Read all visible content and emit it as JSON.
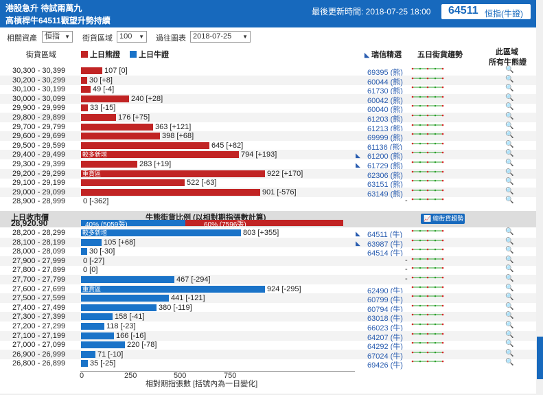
{
  "header": {
    "title_line1": "港股急升 待試兩萬九",
    "title_line2": "高槓桿牛64511觀望升勢持續",
    "last_update": "最後更新時間: 2018-07-25 18:00",
    "code": "64511",
    "code_name": "恒指(牛證)"
  },
  "filters": {
    "asset_label": "相關資產",
    "asset_value": "恒指",
    "zone_label": "街貨區域",
    "zone_value": "100",
    "chart_label": "過往圖表",
    "chart_value": "2018-07-25"
  },
  "columns": {
    "zone": "街貨區域",
    "bear_legend": "上日熊證",
    "bull_legend": "上日牛證",
    "recommend": "瑞信精選",
    "trend": "五日街貨趨勢",
    "this_zone_1": "此區域",
    "this_zone_2": "所有牛熊證"
  },
  "bear_rows": [
    {
      "range": "30,300 - 30,399",
      "value": 107,
      "change": "[0]",
      "label": "107 [0]",
      "code": "69395 (熊)",
      "chip": false,
      "inner": ""
    },
    {
      "range": "30,200 - 30,299",
      "value": 30,
      "change": "[+8]",
      "label": "30 [+8]",
      "code": "60044 (熊)",
      "chip": false,
      "inner": ""
    },
    {
      "range": "30,100 - 30,199",
      "value": 49,
      "change": "[-4]",
      "label": "49 [-4]",
      "code": "61730 (熊)",
      "chip": false,
      "inner": ""
    },
    {
      "range": "30,000 - 30,099",
      "value": 240,
      "change": "[+28]",
      "label": "240 [+28]",
      "code": "60042 (熊)",
      "chip": false,
      "inner": ""
    },
    {
      "range": "29,900 - 29,999",
      "value": 33,
      "change": "[-15]",
      "label": "33 [-15]",
      "code": "60040 (熊)",
      "chip": false,
      "inner": ""
    },
    {
      "range": "29,800 - 29,899",
      "value": 176,
      "change": "[+75]",
      "label": "176 [+75]",
      "code": "61203 (熊)",
      "chip": false,
      "inner": ""
    },
    {
      "range": "29,700 - 29,799",
      "value": 363,
      "change": "[+121]",
      "label": "363 [+121]",
      "code": "61213 (熊)",
      "chip": false,
      "inner": ""
    },
    {
      "range": "29,600 - 29,699",
      "value": 398,
      "change": "[+68]",
      "label": "398 [+68]",
      "code": "69999 (熊)",
      "chip": false,
      "inner": ""
    },
    {
      "range": "29,500 - 29,599",
      "value": 645,
      "change": "[+82]",
      "label": "645 [+82]",
      "code": "61136 (熊)",
      "chip": false,
      "inner": ""
    },
    {
      "range": "29,400 - 29,499",
      "value": 794,
      "change": "[+193]",
      "label": "794 [+193]",
      "code": "61200 (熊)",
      "chip": true,
      "inner": "較多新增"
    },
    {
      "range": "29,300 - 29,399",
      "value": 283,
      "change": "[+19]",
      "label": "283 [+19]",
      "code": "61729 (熊)",
      "chip": true,
      "inner": ""
    },
    {
      "range": "29,200 - 29,299",
      "value": 922,
      "change": "[+170]",
      "label": "922 [+170]",
      "code": "62306 (熊)",
      "chip": false,
      "inner": "重貨區"
    },
    {
      "range": "29,100 - 29,199",
      "value": 522,
      "change": "[-63]",
      "label": "522 [-63]",
      "code": "63151 (熊)",
      "chip": false,
      "inner": ""
    },
    {
      "range": "29,000 - 29,099",
      "value": 901,
      "change": "[-576]",
      "label": "901 [-576]",
      "code": "63149 (熊)",
      "chip": false,
      "inner": ""
    },
    {
      "range": "28,900 - 28,999",
      "value": 0,
      "change": "[-362]",
      "label": "0 [-362]",
      "code": "-",
      "chip": false,
      "inner": ""
    }
  ],
  "separator": {
    "close_label": "上日收市價",
    "close_value": "28,920.90",
    "ratio_title": "牛熊街貨比例 (以相對期指張數計算)",
    "bull_ratio_text": "40% (5059張)",
    "bear_ratio_text": "60% (7596張)",
    "bull_ratio": 0.4,
    "bear_ratio": 0.6,
    "trend_button": "總街貨趨勢"
  },
  "bull_rows": [
    {
      "range": "28,200 - 28,299",
      "value": 803,
      "change": "[+355]",
      "label": "803 [+355]",
      "code": "64511 (牛)",
      "chip": true,
      "inner": "較多新增"
    },
    {
      "range": "28,100 - 28,199",
      "value": 105,
      "change": "[+68]",
      "label": "105 [+68]",
      "code": "63987 (牛)",
      "chip": true,
      "inner": ""
    },
    {
      "range": "28,000 - 28,099",
      "value": 30,
      "change": "[-30]",
      "label": "30 [-30]",
      "code": "64514 (牛)",
      "chip": false,
      "inner": ""
    },
    {
      "range": "27,900 - 27,999",
      "value": 0,
      "change": "[-27]",
      "label": "0 [-27]",
      "code": "-",
      "chip": false,
      "inner": ""
    },
    {
      "range": "27,800 - 27,899",
      "value": 0,
      "change": "[0]",
      "label": "0 [0]",
      "code": "-",
      "chip": false,
      "inner": ""
    },
    {
      "range": "27,700 - 27,799",
      "value": 467,
      "change": "[-294]",
      "label": "467 [-294]",
      "code": "-",
      "chip": false,
      "inner": ""
    },
    {
      "range": "27,600 - 27,699",
      "value": 924,
      "change": "[-295]",
      "label": "924 [-295]",
      "code": "62490 (牛)",
      "chip": false,
      "inner": "重貨區"
    },
    {
      "range": "27,500 - 27,599",
      "value": 441,
      "change": "[-121]",
      "label": "441 [-121]",
      "code": "60799 (牛)",
      "chip": false,
      "inner": ""
    },
    {
      "range": "27,400 - 27,499",
      "value": 380,
      "change": "[-119]",
      "label": "380 [-119]",
      "code": "60794 (牛)",
      "chip": false,
      "inner": ""
    },
    {
      "range": "27,300 - 27,399",
      "value": 158,
      "change": "[-41]",
      "label": "158 [-41]",
      "code": "63018 (牛)",
      "chip": false,
      "inner": ""
    },
    {
      "range": "27,200 - 27,299",
      "value": 118,
      "change": "[-23]",
      "label": "118 [-23]",
      "code": "66023 (牛)",
      "chip": false,
      "inner": ""
    },
    {
      "range": "27,100 - 27,199",
      "value": 166,
      "change": "[-16]",
      "label": "166 [-16]",
      "code": "64207 (牛)",
      "chip": false,
      "inner": ""
    },
    {
      "range": "27,000 - 27,099",
      "value": 220,
      "change": "[-78]",
      "label": "220 [-78]",
      "code": "64292 (牛)",
      "chip": false,
      "inner": ""
    },
    {
      "range": "26,900 - 26,999",
      "value": 71,
      "change": "[-10]",
      "label": "71 [-10]",
      "code": "67024 (牛)",
      "chip": false,
      "inner": ""
    },
    {
      "range": "26,800 - 26,899",
      "value": 35,
      "change": "[-25]",
      "label": "35 [-25]",
      "code": "69426 (牛)",
      "chip": false,
      "inner": ""
    }
  ],
  "axis": {
    "ticks": [
      "0",
      "250",
      "500",
      "750"
    ],
    "tick_values": [
      0,
      250,
      500,
      750
    ],
    "max": 1000,
    "xlabel": "相對期指張數 [括號內為一日變化]"
  },
  "colors": {
    "bear": "#c12424",
    "bull": "#1a73c8",
    "header": "#1769bd",
    "up": "#2ca02c",
    "down": "#d62728"
  },
  "chart_data": {
    "type": "bar",
    "orientation": "horizontal",
    "xlabel": "相對期指張數 [括號內為一日變化]",
    "xlim": [
      0,
      1000
    ],
    "series": [
      {
        "name": "上日熊證",
        "categories": [
          "30,300 - 30,399",
          "30,200 - 30,299",
          "30,100 - 30,199",
          "30,000 - 30,099",
          "29,900 - 29,999",
          "29,800 - 29,899",
          "29,700 - 29,799",
          "29,600 - 29,699",
          "29,500 - 29,599",
          "29,400 - 29,499",
          "29,300 - 29,399",
          "29,200 - 29,299",
          "29,100 - 29,199",
          "29,000 - 29,099",
          "28,900 - 28,999"
        ],
        "values": [
          107,
          30,
          49,
          240,
          33,
          176,
          363,
          398,
          645,
          794,
          283,
          922,
          522,
          901,
          0
        ],
        "changes": [
          0,
          8,
          -4,
          28,
          -15,
          75,
          121,
          68,
          82,
          193,
          19,
          170,
          -63,
          -576,
          -362
        ]
      },
      {
        "name": "上日牛證",
        "categories": [
          "28,200 - 28,299",
          "28,100 - 28,199",
          "28,000 - 28,099",
          "27,900 - 27,999",
          "27,800 - 27,899",
          "27,700 - 27,799",
          "27,600 - 27,699",
          "27,500 - 27,599",
          "27,400 - 27,499",
          "27,300 - 27,399",
          "27,200 - 27,299",
          "27,100 - 27,199",
          "27,000 - 27,099",
          "26,900 - 26,999",
          "26,800 - 26,899"
        ],
        "values": [
          803,
          105,
          30,
          0,
          0,
          467,
          924,
          441,
          380,
          158,
          118,
          166,
          220,
          71,
          35
        ],
        "changes": [
          355,
          68,
          -30,
          -27,
          0,
          -294,
          -295,
          -121,
          -119,
          -41,
          -23,
          -16,
          -78,
          -10,
          -25
        ]
      }
    ]
  }
}
